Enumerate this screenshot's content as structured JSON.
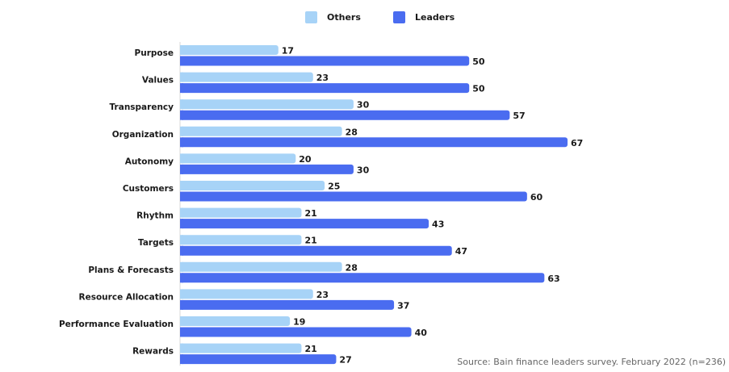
{
  "colors": {
    "others": "#a7d3f7",
    "leaders": "#4a6cf0",
    "label": "#1a1a1a",
    "axis": "#d9d9d9"
  },
  "legend": {
    "others": "Others",
    "leaders": "Leaders"
  },
  "source": "Source: Bain finance leaders survey. February 2022 (n=236)",
  "chart_data": {
    "type": "bar",
    "orientation": "horizontal",
    "categories": [
      "Purpose",
      "Values",
      "Transparency",
      "Organization",
      "Autonomy",
      "Customers",
      "Rhythm",
      "Targets",
      "Plans & Forecasts",
      "Resource Allocation",
      "Performance Evaluation",
      "Rewards"
    ],
    "series": [
      {
        "name": "Others",
        "values": [
          17,
          23,
          30,
          28,
          20,
          25,
          21,
          21,
          28,
          23,
          19,
          21
        ]
      },
      {
        "name": "Leaders",
        "values": [
          50,
          50,
          57,
          67,
          30,
          60,
          43,
          47,
          63,
          37,
          40,
          27
        ]
      }
    ],
    "xlim": [
      0,
      67
    ],
    "grid": false,
    "legend_position": "top-center",
    "data_labels": true
  }
}
